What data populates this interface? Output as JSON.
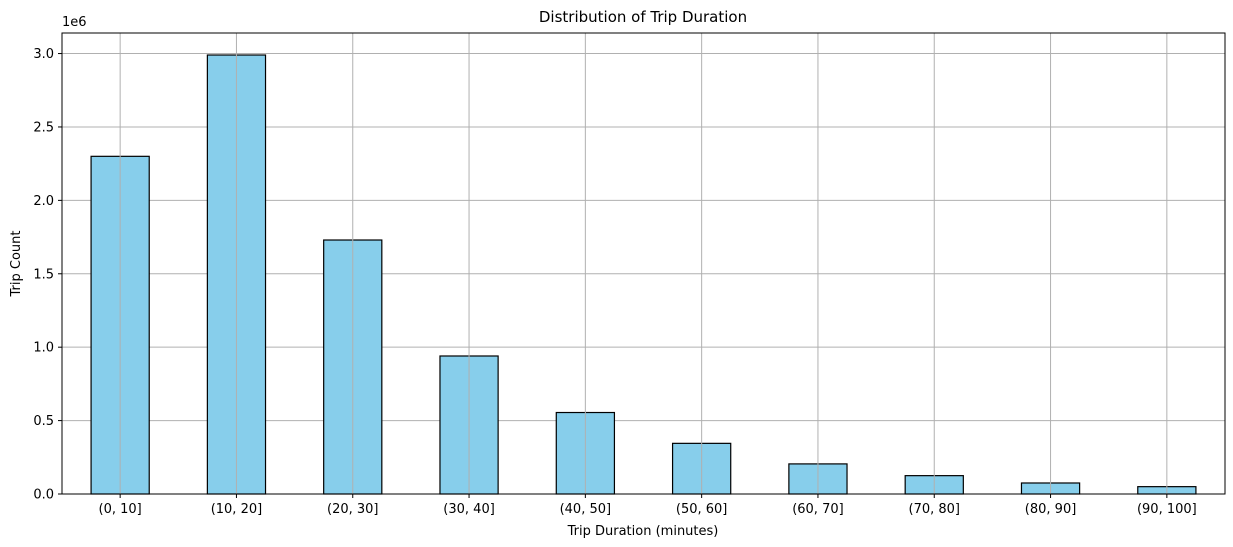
{
  "chart_data": {
    "type": "bar",
    "title": "Distribution of Trip Duration",
    "xlabel": "Trip Duration (minutes)",
    "ylabel": "Trip Count",
    "y_offset_label": "1e6",
    "categories": [
      "(0, 10]",
      "(10, 20]",
      "(20, 30]",
      "(30, 40]",
      "(40, 50]",
      "(50, 60]",
      "(60, 70]",
      "(70, 80]",
      "(80, 90]",
      "(90, 100]"
    ],
    "values": [
      2300000,
      2990000,
      1730000,
      940000,
      555000,
      345000,
      205000,
      125000,
      75000,
      50000
    ],
    "ylim": [
      0,
      3140000
    ],
    "yticks": [
      0,
      500000,
      1000000,
      1500000,
      2000000,
      2500000,
      3000000
    ],
    "ytick_labels": [
      "0.0",
      "0.5",
      "1.0",
      "1.5",
      "2.0",
      "2.5",
      "3.0"
    ],
    "grid": true,
    "bar_color": "#87CEEB",
    "edge_color": "#000000",
    "grid_color": "#b0b0b0"
  }
}
